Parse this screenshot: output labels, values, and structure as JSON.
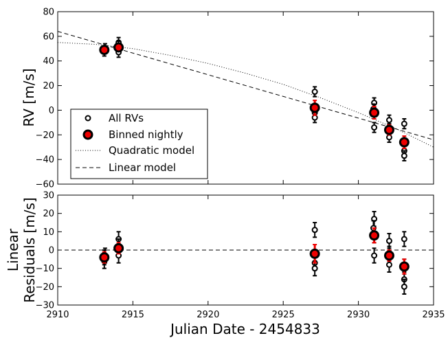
{
  "chart_data": [
    {
      "type": "scatter",
      "xlabel": "",
      "ylabel": "RV [m/s]",
      "xlim": [
        2910,
        2935
      ],
      "ylim": [
        -60,
        80
      ],
      "x_ticks": [
        2910,
        2915,
        2920,
        2925,
        2930,
        2935
      ],
      "y_ticks": [
        -60,
        -40,
        -20,
        0,
        20,
        40,
        60,
        80
      ],
      "y_tick_labels": [
        "−60",
        "−40",
        "−20",
        "0",
        "20",
        "40",
        "60",
        "80"
      ],
      "grid": false,
      "legend": {
        "placement": "lower-left",
        "entries": [
          "All RVs",
          "Binned nightly",
          "Quadratic model",
          "Linear model"
        ]
      },
      "series": [
        {
          "name": "All RVs",
          "style": "open-circle-errorbar",
          "color": "#000000",
          "points": [
            {
              "x": 2913.1,
              "y": 48,
              "err": 4
            },
            {
              "x": 2913.15,
              "y": 50,
              "err": 4
            },
            {
              "x": 2914.05,
              "y": 55,
              "err": 4
            },
            {
              "x": 2914.05,
              "y": 52,
              "err": 4
            },
            {
              "x": 2914.05,
              "y": 47,
              "err": 4
            },
            {
              "x": 2927.1,
              "y": 15,
              "err": 4
            },
            {
              "x": 2927.1,
              "y": -2,
              "err": 4
            },
            {
              "x": 2927.1,
              "y": -6,
              "err": 4
            },
            {
              "x": 2931.05,
              "y": 6,
              "err": 4
            },
            {
              "x": 2931.0,
              "y": 1,
              "err": 4
            },
            {
              "x": 2931.05,
              "y": -3,
              "err": 4
            },
            {
              "x": 2931.05,
              "y": -14,
              "err": 4
            },
            {
              "x": 2932.05,
              "y": -8,
              "err": 4
            },
            {
              "x": 2932.05,
              "y": -15,
              "err": 4
            },
            {
              "x": 2932.05,
              "y": -22,
              "err": 4
            },
            {
              "x": 2933.05,
              "y": -11,
              "err": 4
            },
            {
              "x": 2933.05,
              "y": -27,
              "err": 4
            },
            {
              "x": 2933.05,
              "y": -33,
              "err": 4
            },
            {
              "x": 2933.05,
              "y": -37,
              "err": 4
            }
          ]
        },
        {
          "name": "Binned nightly",
          "style": "filled-circle-errorbar",
          "color": "#ee0000",
          "points": [
            {
              "x": 2913.1,
              "y": 49,
              "err": 3
            },
            {
              "x": 2914.05,
              "y": 51,
              "err": 3
            },
            {
              "x": 2927.1,
              "y": 2,
              "err": 6
            },
            {
              "x": 2931.05,
              "y": -2,
              "err": 5
            },
            {
              "x": 2932.05,
              "y": -16,
              "err": 4
            },
            {
              "x": 2933.05,
              "y": -26,
              "err": 5
            }
          ]
        },
        {
          "name": "Quadratic model",
          "style": "dotted-line",
          "color": "#000000",
          "x": [
            2910,
            2912.5,
            2915,
            2917.5,
            2920,
            2922.5,
            2925,
            2927.5,
            2930,
            2932.5,
            2935
          ],
          "y": [
            55,
            53.5,
            50,
            44.5,
            38,
            30,
            21,
            10,
            -2,
            -15,
            -30
          ]
        },
        {
          "name": "Linear model",
          "style": "dashed-line",
          "color": "#000000",
          "x": [
            2910,
            2935
          ],
          "y": [
            64,
            -24
          ]
        }
      ]
    },
    {
      "type": "scatter",
      "xlabel": "Julian Date - 2454833",
      "ylabel": [
        "Linear",
        "Residuals [m/s]"
      ],
      "xlim": [
        2910,
        2935
      ],
      "ylim": [
        -30,
        30
      ],
      "x_ticks": [
        2910,
        2915,
        2920,
        2925,
        2930,
        2935
      ],
      "y_ticks": [
        -30,
        -20,
        -10,
        0,
        10,
        20,
        30
      ],
      "y_tick_labels": [
        "−30",
        "−20",
        "−10",
        "0",
        "10",
        "20",
        "30"
      ],
      "grid": false,
      "reference_line": {
        "y": 0,
        "style": "dashed"
      },
      "series": [
        {
          "name": "All RVs",
          "style": "open-circle-errorbar",
          "color": "#000000",
          "points": [
            {
              "x": 2913.1,
              "y": -4,
              "err": 4
            },
            {
              "x": 2913.15,
              "y": -3,
              "err": 4
            },
            {
              "x": 2913.1,
              "y": -6,
              "err": 4
            },
            {
              "x": 2914.05,
              "y": 6,
              "err": 4
            },
            {
              "x": 2914.05,
              "y": 2,
              "err": 4
            },
            {
              "x": 2914.05,
              "y": -3,
              "err": 4
            },
            {
              "x": 2927.1,
              "y": 11,
              "err": 4
            },
            {
              "x": 2927.1,
              "y": -7,
              "err": 4
            },
            {
              "x": 2927.1,
              "y": -10,
              "err": 4
            },
            {
              "x": 2931.05,
              "y": 17,
              "err": 4
            },
            {
              "x": 2931.0,
              "y": 12,
              "err": 4
            },
            {
              "x": 2931.05,
              "y": 8,
              "err": 4
            },
            {
              "x": 2931.05,
              "y": -3,
              "err": 4
            },
            {
              "x": 2932.05,
              "y": 5,
              "err": 4
            },
            {
              "x": 2932.05,
              "y": -2,
              "err": 4
            },
            {
              "x": 2932.05,
              "y": -8,
              "err": 4
            },
            {
              "x": 2933.05,
              "y": 6,
              "err": 4
            },
            {
              "x": 2933.05,
              "y": -9,
              "err": 4
            },
            {
              "x": 2933.05,
              "y": -16,
              "err": 4
            },
            {
              "x": 2933.05,
              "y": -20,
              "err": 4
            }
          ]
        },
        {
          "name": "Binned nightly",
          "style": "filled-circle-errorbar",
          "color": "#ee0000",
          "points": [
            {
              "x": 2913.1,
              "y": -4,
              "err": 3
            },
            {
              "x": 2914.05,
              "y": 1,
              "err": 3
            },
            {
              "x": 2927.1,
              "y": -2,
              "err": 5
            },
            {
              "x": 2931.05,
              "y": 8,
              "err": 4
            },
            {
              "x": 2932.05,
              "y": -3,
              "err": 3
            },
            {
              "x": 2933.05,
              "y": -9,
              "err": 4
            }
          ]
        }
      ]
    }
  ]
}
